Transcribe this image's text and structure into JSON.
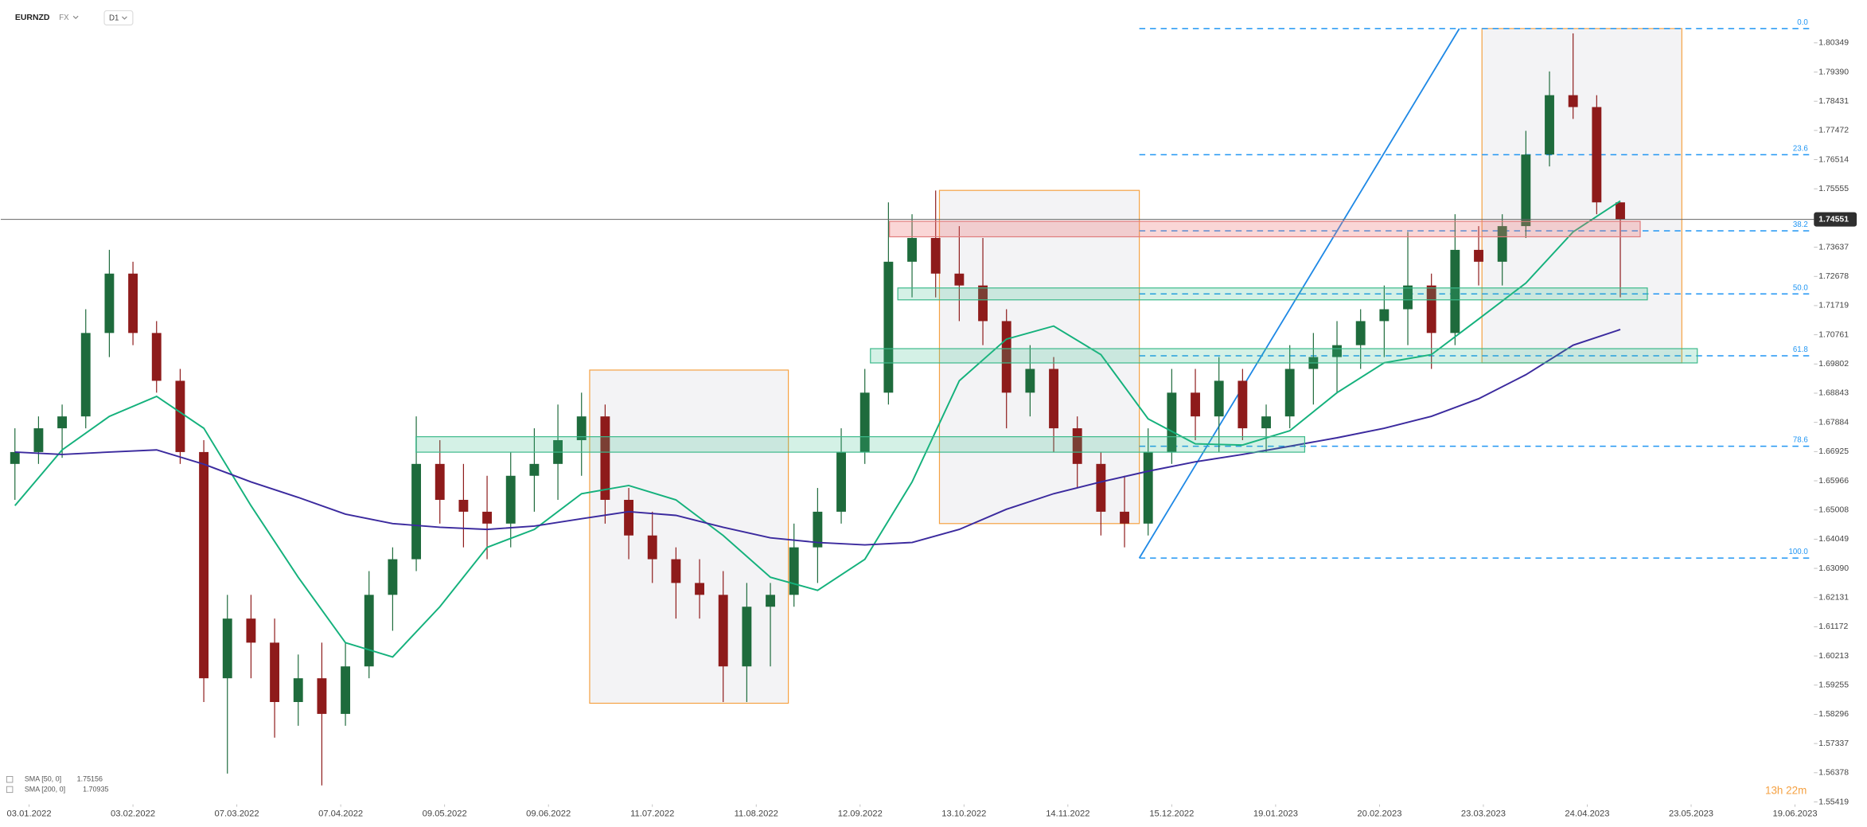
{
  "chart_data": {
    "type": "candlestick",
    "symbol": "EURNZD",
    "market": "FX",
    "interval": "D1",
    "countdown": "13h 22m",
    "last_price": 1.74551,
    "up_color": "#1e6b3c",
    "down_color": "#8e1b1b",
    "xlim": [
      -1,
      383
    ],
    "ylim": [
      1.55338,
      1.81756
    ],
    "xticks": [
      {
        "value": 5,
        "label": "03.01.2022"
      },
      {
        "value": 27,
        "label": "03.02.2022"
      },
      {
        "value": 49,
        "label": "07.03.2022"
      },
      {
        "value": 71,
        "label": "07.04.2022"
      },
      {
        "value": 93,
        "label": "09.05.2022"
      },
      {
        "value": 115,
        "label": "09.06.2022"
      },
      {
        "value": 137,
        "label": "11.07.2022"
      },
      {
        "value": 159,
        "label": "11.08.2022"
      },
      {
        "value": 181,
        "label": "12.09.2022"
      },
      {
        "value": 203,
        "label": "13.10.2022"
      },
      {
        "value": 225,
        "label": "14.11.2022"
      },
      {
        "value": 247,
        "label": "15.12.2022"
      },
      {
        "value": 269,
        "label": "19.01.2023"
      },
      {
        "value": 291,
        "label": "20.02.2023"
      },
      {
        "value": 313,
        "label": "23.03.2023"
      },
      {
        "value": 335,
        "label": "24.04.2023"
      },
      {
        "value": 357,
        "label": "23.05.2023"
      },
      {
        "value": 379,
        "label": "19.06.2023"
      }
    ],
    "yticks": [
      1.80349,
      {
        "value": 1.7939,
        "label": "1.79390"
      },
      1.78431,
      1.77472,
      1.76514,
      1.75555,
      1.73637,
      1.72678,
      1.71719,
      1.70761,
      1.69802,
      1.68843,
      1.67884,
      1.66925,
      1.65966,
      1.65008,
      1.64049,
      {
        "value": 1.6309,
        "label": "1.63090"
      },
      1.62131,
      1.61172,
      1.60213,
      1.59255,
      1.58296,
      1.57337,
      1.56378,
      1.55419
    ],
    "x": [
      2,
      7,
      12,
      17,
      22,
      27,
      32,
      37,
      42,
      47,
      52,
      57,
      62,
      67,
      72,
      77,
      82,
      87,
      92,
      97,
      102,
      107,
      112,
      117,
      122,
      127,
      132,
      137,
      142,
      147,
      152,
      157,
      162,
      167,
      172,
      177,
      182,
      187,
      192,
      197,
      202,
      207,
      212,
      217,
      222,
      227,
      232,
      237,
      242,
      247,
      252,
      257,
      262,
      267,
      272,
      277,
      282,
      287,
      292,
      297,
      302,
      307,
      312,
      317,
      322,
      327,
      332,
      337,
      342
    ],
    "open": [
      1.6652,
      1.6691,
      1.6769,
      1.6808,
      1.7082,
      1.7277,
      1.7082,
      1.6925,
      1.6691,
      1.5948,
      1.6144,
      1.6065,
      1.587,
      1.5948,
      1.5831,
      1.5987,
      1.6222,
      1.6339,
      1.6652,
      1.6534,
      1.6495,
      1.6456,
      1.6613,
      1.6652,
      1.673,
      1.6808,
      1.6534,
      1.6417,
      1.6339,
      1.6261,
      1.6222,
      1.5987,
      1.6183,
      1.6222,
      1.6378,
      1.6495,
      1.6691,
      1.6886,
      1.7316,
      1.7394,
      1.7277,
      1.7238,
      1.7121,
      1.6886,
      1.6964,
      1.6769,
      1.6652,
      1.6495,
      1.6456,
      1.6691,
      1.6886,
      1.6808,
      1.6925,
      1.6769,
      1.6808,
      1.6964,
      1.7003,
      1.7042,
      1.7121,
      1.716,
      1.7238,
      1.7082,
      1.7355,
      1.7316,
      1.7433,
      1.7668,
      1.7863,
      1.7824,
      1.7511
    ],
    "high": [
      1.6769,
      1.6808,
      1.6847,
      1.716,
      1.7355,
      1.7316,
      1.7121,
      1.6964,
      1.673,
      1.6222,
      1.6222,
      1.6144,
      1.6026,
      1.6065,
      1.6065,
      1.63,
      1.6378,
      1.6808,
      1.673,
      1.6652,
      1.6613,
      1.6691,
      1.6769,
      1.6847,
      1.6886,
      1.6847,
      1.6573,
      1.6495,
      1.6378,
      1.6339,
      1.63,
      1.6261,
      1.6261,
      1.6456,
      1.6573,
      1.6769,
      1.6964,
      1.7511,
      1.7472,
      1.755,
      1.7433,
      1.7394,
      1.716,
      1.7042,
      1.7003,
      1.6808,
      1.6691,
      1.6613,
      1.6769,
      1.6964,
      1.6964,
      1.7003,
      1.6964,
      1.6847,
      1.7042,
      1.7082,
      1.7121,
      1.716,
      1.7238,
      1.7414,
      1.7277,
      1.7472,
      1.7433,
      1.7472,
      1.7746,
      1.7941,
      1.8066,
      1.7863,
      1.7511
    ],
    "low": [
      1.6534,
      1.6652,
      1.6672,
      1.6769,
      1.7003,
      1.7042,
      1.6886,
      1.6652,
      1.587,
      1.5635,
      1.5948,
      1.5753,
      1.5792,
      1.5596,
      1.5792,
      1.5948,
      1.6104,
      1.63,
      1.6456,
      1.6378,
      1.6339,
      1.6378,
      1.6495,
      1.6534,
      1.6613,
      1.6456,
      1.6339,
      1.6261,
      1.6144,
      1.6144,
      1.587,
      1.587,
      1.5987,
      1.6183,
      1.6261,
      1.6456,
      1.6652,
      1.6847,
      1.7199,
      1.7199,
      1.7121,
      1.7042,
      1.6769,
      1.6808,
      1.6691,
      1.6573,
      1.6417,
      1.6378,
      1.6417,
      1.6652,
      1.673,
      1.6691,
      1.673,
      1.6691,
      1.6769,
      1.6847,
      1.6886,
      1.6964,
      1.7003,
      1.7042,
      1.6964,
      1.7042,
      1.7238,
      1.7238,
      1.7394,
      1.7629,
      1.7785,
      1.7472,
      1.7199
    ],
    "close": [
      1.6691,
      1.6769,
      1.6808,
      1.7082,
      1.7277,
      1.7082,
      1.6925,
      1.6691,
      1.5948,
      1.6144,
      1.6065,
      1.587,
      1.5948,
      1.5831,
      1.5987,
      1.6222,
      1.6339,
      1.6652,
      1.6534,
      1.6495,
      1.6456,
      1.6613,
      1.6652,
      1.673,
      1.6808,
      1.6534,
      1.6417,
      1.6339,
      1.6261,
      1.6222,
      1.5987,
      1.6183,
      1.6222,
      1.6378,
      1.6495,
      1.6691,
      1.6886,
      1.7316,
      1.7394,
      1.7277,
      1.7238,
      1.7121,
      1.6886,
      1.6964,
      1.6769,
      1.6652,
      1.6495,
      1.6456,
      1.6691,
      1.6886,
      1.6808,
      1.6925,
      1.6769,
      1.6808,
      1.6964,
      1.7003,
      1.7042,
      1.7121,
      1.716,
      1.7238,
      1.7082,
      1.7355,
      1.7316,
      1.7433,
      1.7668,
      1.7863,
      1.7824,
      1.7511,
      1.74551
    ],
    "series": [
      {
        "name": "SMA [50, 0]",
        "color": "#14b17c",
        "x": [
          2,
          12,
          22,
          32,
          42,
          52,
          62,
          72,
          82,
          92,
          102,
          112,
          122,
          132,
          142,
          152,
          162,
          172,
          182,
          192,
          202,
          212,
          222,
          232,
          242,
          252,
          262,
          272,
          282,
          292,
          302,
          312,
          322,
          332,
          342
        ],
        "values": [
          1.6515,
          1.6698,
          1.6808,
          1.6874,
          1.6769,
          1.6515,
          1.628,
          1.6065,
          1.6018,
          1.6183,
          1.6378,
          1.6437,
          1.6554,
          1.6581,
          1.6534,
          1.6417,
          1.628,
          1.6237,
          1.6339,
          1.6593,
          1.6925,
          1.7062,
          1.7105,
          1.7011,
          1.68,
          1.6718,
          1.6714,
          1.6761,
          1.6886,
          1.6984,
          1.7011,
          1.7128,
          1.7246,
          1.7414,
          1.75156
        ]
      },
      {
        "name": "SMA [200, 0]",
        "color": "#3b2a9e",
        "x": [
          2,
          12,
          22,
          32,
          42,
          52,
          62,
          72,
          82,
          92,
          102,
          112,
          122,
          132,
          142,
          152,
          162,
          172,
          182,
          192,
          202,
          212,
          222,
          232,
          242,
          252,
          262,
          272,
          282,
          292,
          302,
          312,
          322,
          332,
          342
        ],
        "values": [
          1.6691,
          1.6683,
          1.6691,
          1.6698,
          1.6651,
          1.6593,
          1.6542,
          1.6487,
          1.6456,
          1.6444,
          1.6437,
          1.6448,
          1.6472,
          1.6495,
          1.6483,
          1.6444,
          1.6409,
          1.6394,
          1.6386,
          1.6394,
          1.6437,
          1.6503,
          1.6554,
          1.6593,
          1.6628,
          1.6659,
          1.6683,
          1.671,
          1.6738,
          1.6769,
          1.6808,
          1.6866,
          1.6945,
          1.7042,
          1.70935
        ]
      }
    ],
    "fib_labels": [
      "0.0",
      "23.6",
      "38.2",
      "50.0",
      "61.8",
      "78.6",
      "100.0"
    ]
  }
}
